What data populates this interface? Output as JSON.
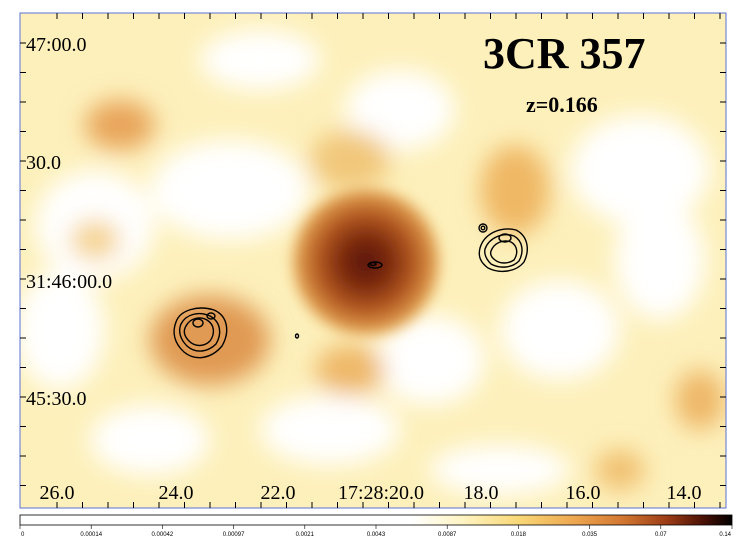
{
  "figure": {
    "title": "3CR 357",
    "redshift": "z=0.166",
    "dec_labels": [
      "47:00.0",
      "30.0",
      "31:46:00.0",
      "45:30.0"
    ],
    "ra_labels": [
      "26.0",
      "24.0",
      "22.0",
      "17:28:20.0",
      "18.0",
      "16.0",
      "14.0"
    ],
    "colorbar_ticks": [
      "0",
      "0.00014",
      "0.00042",
      "0.00097",
      "0.0021",
      "0.0043",
      "0.0087",
      "0.018",
      "0.035",
      "0.07",
      "0.14"
    ],
    "colormap": [
      "#ffffff",
      "#fff3c0",
      "#fbdf7a",
      "#f3b957",
      "#de8a3a",
      "#b9571f",
      "#7f2a0c",
      "#3a0d04",
      "#000000"
    ],
    "frame_color": "#5a6fd6"
  }
}
